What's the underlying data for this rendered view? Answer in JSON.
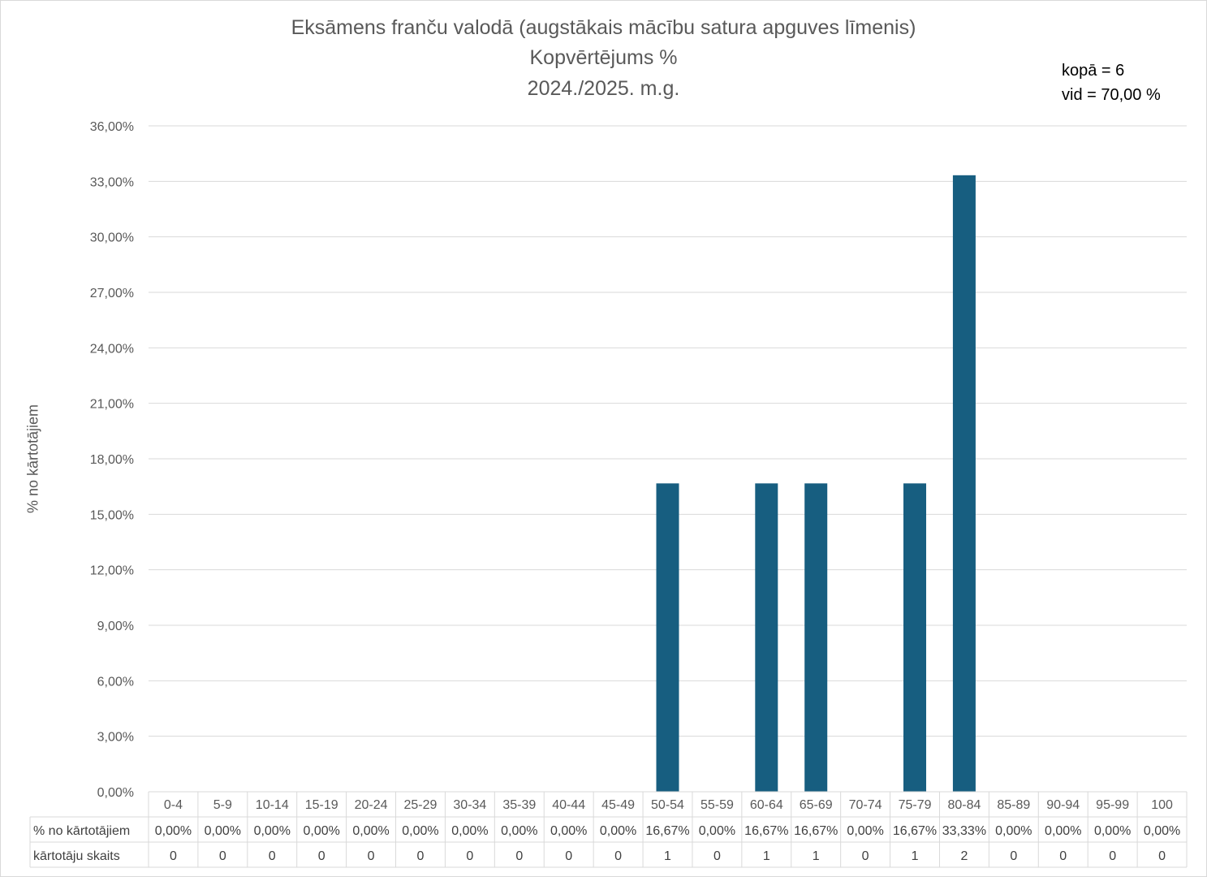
{
  "chart_data": {
    "type": "bar",
    "title_lines": [
      "Eksāmens franču valodā (augstākais mācību satura apguves līmenis)",
      "Kopvērtējums %",
      "2024./2025. m.g."
    ],
    "stats": {
      "total": "kopā = 6",
      "average": "vid = 70,00 %"
    },
    "ylabel": "% no kārtotājiem",
    "y_ticks": [
      "0,00%",
      "3,00%",
      "6,00%",
      "9,00%",
      "12,00%",
      "15,00%",
      "18,00%",
      "21,00%",
      "24,00%",
      "27,00%",
      "30,00%",
      "33,00%",
      "36,00%"
    ],
    "ylim": [
      0,
      36
    ],
    "grid": true,
    "bar_color": "#175e80",
    "categories": [
      "0-4",
      "5-9",
      "10-14",
      "15-19",
      "20-24",
      "25-29",
      "30-34",
      "35-39",
      "40-44",
      "45-49",
      "50-54",
      "55-59",
      "60-64",
      "65-69",
      "70-74",
      "75-79",
      "80-84",
      "85-89",
      "90-94",
      "95-99",
      "100"
    ],
    "series": [
      {
        "name": "% no kārtotājiem",
        "values": [
          0,
          0,
          0,
          0,
          0,
          0,
          0,
          0,
          0,
          0,
          16.67,
          0,
          16.67,
          16.67,
          0,
          16.67,
          33.33,
          0,
          0,
          0,
          0
        ]
      }
    ],
    "data_table": {
      "rows": [
        {
          "label": "% no kārtotājiem",
          "cells": [
            "0,00%",
            "0,00%",
            "0,00%",
            "0,00%",
            "0,00%",
            "0,00%",
            "0,00%",
            "0,00%",
            "0,00%",
            "0,00%",
            "16,67%",
            "0,00%",
            "16,67%",
            "16,67%",
            "0,00%",
            "16,67%",
            "33,33%",
            "0,00%",
            "0,00%",
            "0,00%",
            "0,00%"
          ]
        },
        {
          "label": "kārtotāju skaits",
          "cells": [
            "0",
            "0",
            "0",
            "0",
            "0",
            "0",
            "0",
            "0",
            "0",
            "0",
            "1",
            "0",
            "1",
            "1",
            "0",
            "1",
            "2",
            "0",
            "0",
            "0",
            "0"
          ]
        }
      ]
    }
  }
}
